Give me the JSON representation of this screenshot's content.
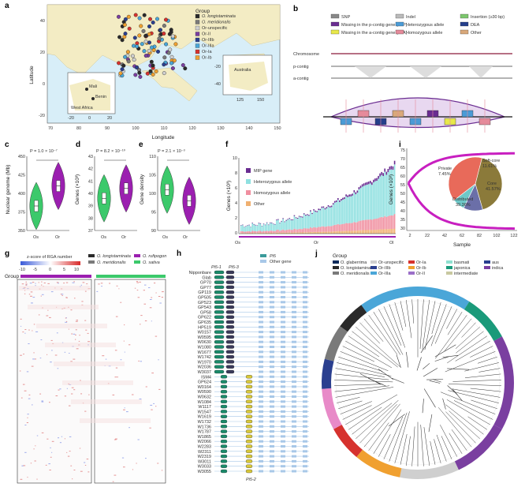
{
  "panels": {
    "a": {
      "label": "a",
      "ylabel": "Latitude",
      "xlabel": "Longitude",
      "xticks": [
        "70",
        "80",
        "90",
        "100",
        "110",
        "120",
        "130",
        "140",
        "150"
      ],
      "yticks": [
        "40",
        "20",
        "0",
        "-20"
      ],
      "legend_title": "Group",
      "legend": [
        {
          "label": "O. longistaminata",
          "color": "#2a2a2a",
          "italic": true
        },
        {
          "label": "O. meridionalis",
          "color": "#7a7a7a",
          "italic": true
        },
        {
          "label": "Or-unspecific",
          "color": "#cfcfcf",
          "italic": false
        },
        {
          "label": "Or-II",
          "color": "#7a3fa0",
          "italic": false
        },
        {
          "label": "Or-IIIb",
          "color": "#2a3f8f",
          "italic": false
        },
        {
          "label": "Or-IIIa",
          "color": "#4aa6d8",
          "italic": false
        },
        {
          "label": "Or-Ia",
          "color": "#d6322e",
          "italic": false
        },
        {
          "label": "Or-Ib",
          "color": "#f0a030",
          "italic": false
        }
      ],
      "inset_africa": {
        "labels": [
          "Mali",
          "Benin",
          "West Africa"
        ],
        "xticks": [
          "-20",
          "0",
          "20"
        ]
      },
      "inset_australia": {
        "label": "Australia",
        "yticks": [
          "-20",
          "-40"
        ],
        "xticks": [
          "125",
          "150"
        ]
      }
    },
    "b": {
      "label": "b",
      "legend": [
        {
          "label": "SNP",
          "color": "#888888"
        },
        {
          "label": "Indel",
          "color": "#bbbbbb"
        },
        {
          "label": "Insertion (≥30 bp)",
          "color": "#7cc76d"
        },
        {
          "label": "Missing in the p-contig gene (MIP)",
          "color": "#6a2c91"
        },
        {
          "label": "Heterozygous allele",
          "color": "#4b9bd6"
        },
        {
          "label": "DEA",
          "color": "#253f8c"
        },
        {
          "label": "Missing in the a-contig gene (MIA)",
          "color": "#e8e84a"
        },
        {
          "label": "Homozygous allele",
          "color": "#e58a9a"
        },
        {
          "label": "Other",
          "color": "#d9a87a"
        }
      ],
      "tracks": [
        "Chromosome",
        "p-contig",
        "a-contig"
      ]
    },
    "c": {
      "label": "c",
      "pvalue": "P = 1.0 × 10⁻⁷",
      "ylabel": "Nuclear genome (Mb)",
      "yticks": [
        "450",
        "425",
        "400",
        "375",
        "350"
      ],
      "groups": [
        "Os",
        "Or"
      ],
      "colors": [
        "#3cc96b",
        "#9b1fb0"
      ],
      "medians": [
        383,
        410
      ]
    },
    "d": {
      "label": "d",
      "pvalue": "P = 8.2 × 10⁻¹⁰",
      "ylabel": "Genes (×10³)",
      "yticks": [
        "43",
        "42",
        "41",
        "40",
        "39",
        "38",
        "37"
      ],
      "groups": [
        "Os",
        "Or"
      ],
      "colors": [
        "#3cc96b",
        "#9b1fb0"
      ],
      "medians": [
        39.6,
        40.4
      ]
    },
    "e": {
      "label": "e",
      "pvalue": "P = 2.1 × 10⁻³",
      "ylabel": "Gene density",
      "yticks": [
        "110",
        "105",
        "100",
        "95",
        "90"
      ],
      "groups": [
        "Os",
        "Or"
      ],
      "colors": [
        "#3cc96b",
        "#9b1fb0"
      ],
      "medians": [
        101,
        98
      ]
    },
    "f": {
      "label": "f",
      "ylabel": "Genes (×10³)",
      "yticks": [
        "10",
        "8",
        "6",
        "4",
        "2",
        "0"
      ],
      "xticks": [
        "Os",
        "Or",
        "Ol"
      ],
      "legend": [
        {
          "label": "MIP gene",
          "color": "#6a2c91"
        },
        {
          "label": "Heterozygous allele",
          "color": "#8fe0e0"
        },
        {
          "label": "Homozygous allele",
          "color": "#f08fa0"
        },
        {
          "label": "Other",
          "color": "#f0b070"
        }
      ]
    },
    "i": {
      "label": "i",
      "ylabel": "Genes (×10³)",
      "xlabel": "Sample",
      "yticks": [
        "75",
        "70",
        "65",
        "60",
        "55",
        "50",
        "45",
        "40",
        "35",
        "30"
      ],
      "xticks": [
        "2",
        "22",
        "42",
        "62",
        "82",
        "102",
        "122"
      ],
      "pie": [
        {
          "label": "Core",
          "value": 41.57,
          "color": "#8b7a3a"
        },
        {
          "label": "Soft-core",
          "value": 11.61,
          "color": "#6b6fa8"
        },
        {
          "label": "Private",
          "value": 7.45,
          "color": "#6ec8c8"
        },
        {
          "label": "Distributed",
          "value": 39.36,
          "color": "#e86a5a"
        }
      ],
      "pie_texts": {
        "core": "Core\n41.57%",
        "softcore": "Soft-core\n11.61%",
        "private": "Private\n7.45%",
        "dist": "Distributed\n39.36%"
      }
    },
    "g": {
      "label": "g",
      "scale_title": "z-score of RGA number",
      "scale_ticks": [
        "-10",
        "-5",
        "0",
        "5",
        "10"
      ],
      "group_label": "Group",
      "legend": [
        {
          "label": "O. longistaminata",
          "color": "#2a2a2a"
        },
        {
          "label": "O. rufipogon",
          "color": "#9b1fb0"
        },
        {
          "label": "O. meridionalis",
          "color": "#7a7a7a"
        },
        {
          "label": "O. sativa",
          "color": "#3cc96b"
        }
      ]
    },
    "h": {
      "label": "h",
      "legend": [
        {
          "label": "Pi5",
          "color": "#3a9a9a"
        },
        {
          "label": "Other gene",
          "color": "#a8c8e8"
        }
      ],
      "top_labels": [
        "Pi5-1",
        "Pi5-3"
      ],
      "bottom_label": "Pi5-2",
      "samples": [
        "Nipponbare",
        "Glab",
        "GP70",
        "GP77",
        "GP119",
        "GP505",
        "GP523",
        "GP543",
        "GP58",
        "GP622",
        "GP635",
        "HP519",
        "W0157",
        "W0595",
        "W0630",
        "W1080",
        "W1677",
        "W1742",
        "W1970",
        "W2036",
        "W3037",
        "ISM4",
        "GP624",
        "W0164",
        "W0590",
        "W0632",
        "W1084",
        "W1117",
        "W1547",
        "W1619",
        "W1732",
        "W1736",
        "W1787",
        "W1865",
        "W2066",
        "W2283",
        "W2311",
        "W2319",
        "W3011",
        "W3033",
        "W3055"
      ]
    },
    "j": {
      "label": "j",
      "legend_title": "Group",
      "legend": [
        {
          "label": "O. glaberrima",
          "color": "#0a2a5a"
        },
        {
          "label": "Or-unspecific",
          "color": "#cfcfcf"
        },
        {
          "label": "Or-Ia",
          "color": "#d6322e"
        },
        {
          "label": "basmati",
          "color": "#8fe0d0"
        },
        {
          "label": "aus",
          "color": "#2a3f8f"
        },
        {
          "label": "O. longistaminata",
          "color": "#2a2a2a"
        },
        {
          "label": "Or-IIIb",
          "color": "#2a3f8f"
        },
        {
          "label": "Or-Ib",
          "color": "#f0a030"
        },
        {
          "label": "japonica",
          "color": "#1a9a7a"
        },
        {
          "label": "indica",
          "color": "#7a3fa0"
        },
        {
          "label": "O. meridionalis",
          "color": "#7a7a7a"
        },
        {
          "label": "Or-IIIa",
          "color": "#4aa6d8"
        },
        {
          "label": "Or-II",
          "color": "#9b6fc8"
        },
        {
          "label": "intermediate",
          "color": "#c8c8a0"
        }
      ]
    }
  }
}
